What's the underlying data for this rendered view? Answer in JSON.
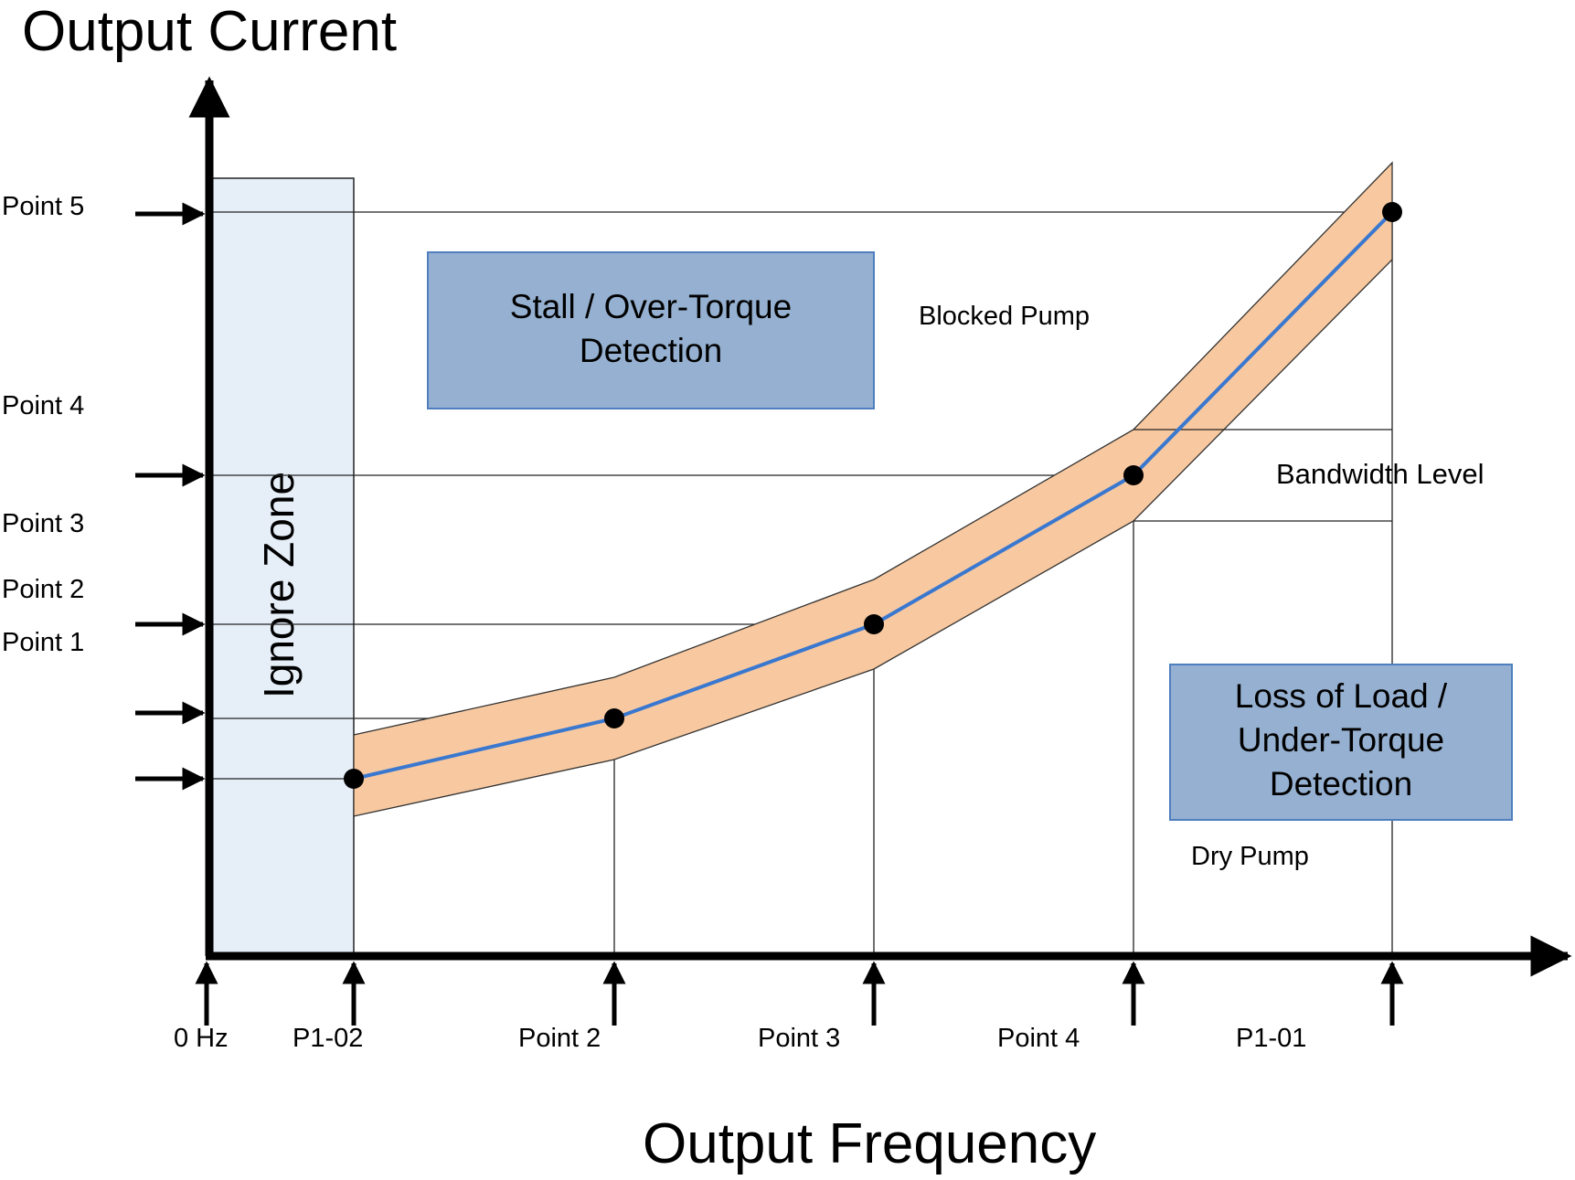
{
  "title_y": "Output Current",
  "title_x": "Output Frequency",
  "ignore_zone": "Ignore Zone",
  "stall_box": {
    "line1": "Stall / Over-Torque",
    "line2": "Detection"
  },
  "loss_box": {
    "line1": "Loss of Load /",
    "line2": "Under-Torque",
    "line3": "Detection"
  },
  "labels": {
    "blocked_pump": "Blocked Pump",
    "dry_pump": "Dry Pump",
    "bandwidth_level": "Bandwidth Level"
  },
  "y_markers": [
    "Point 5",
    "Point 4",
    "Point 3",
    "Point 2",
    "Point 1"
  ],
  "x_markers": [
    "0 Hz",
    "P1-02",
    "Point 2",
    "Point 3",
    "Point 4",
    "P1-01"
  ],
  "colors": {
    "band_fill": "#f8c9a0",
    "curve": "#3a78d0",
    "ignore_fill": "#e6eef8",
    "box_fill": "#95b0d0",
    "box_stroke": "#4f7fbf"
  }
}
